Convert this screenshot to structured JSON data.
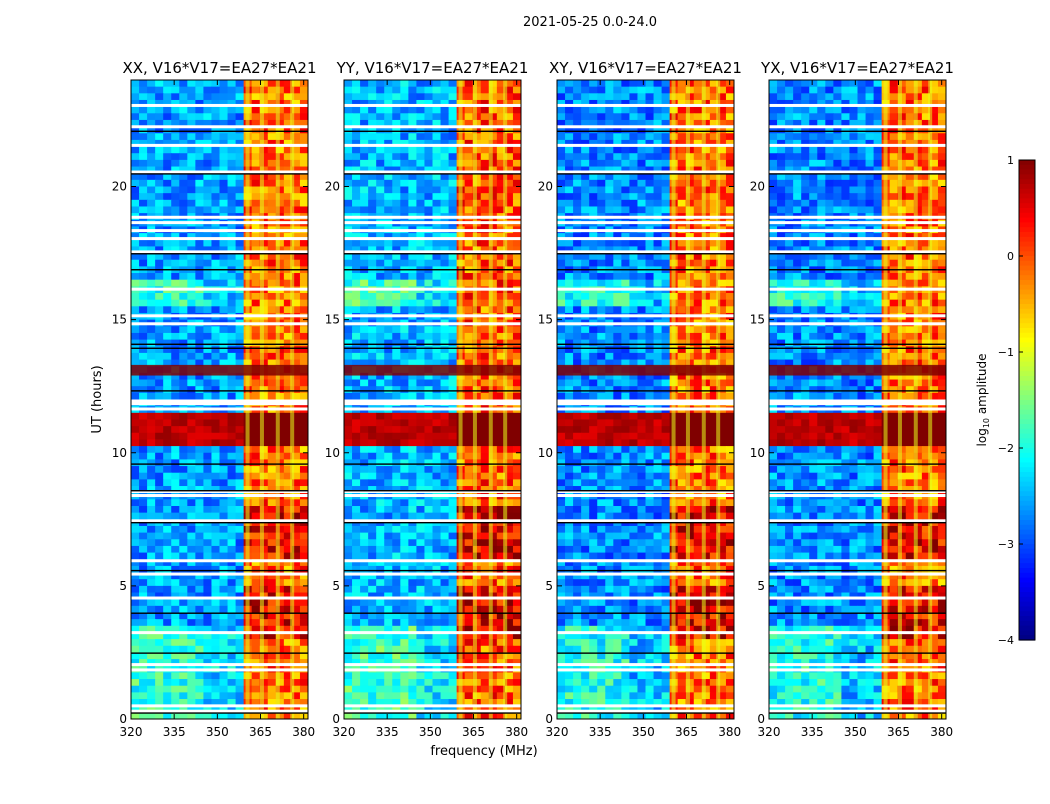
{
  "figure_title": "2021-05-25 0.0-24.0",
  "chart_data": [
    {
      "type": "heatmap",
      "title": "XX, V16*V17=EA27*EA21",
      "xlabel": "",
      "ylabel": "UT (hours)",
      "xlim": [
        320,
        381.5
      ],
      "ylim": [
        0,
        24
      ],
      "xticks": [
        "320",
        "335",
        "350",
        "365",
        "380"
      ],
      "yticks": [
        "0",
        "5",
        "10",
        "15",
        "20"
      ],
      "rfi_band_mhz": [
        359.5,
        380.5
      ],
      "rfi_level_log10": 0.2,
      "background_level_log10": -2.6,
      "strong_rfi_hours": [
        12.4,
        13.8
      ]
    },
    {
      "type": "heatmap",
      "title": "YY, V16*V17=EA27*EA21",
      "xlabel": "frequency (MHz)",
      "ylabel": "",
      "xlim": [
        320,
        381.5
      ],
      "ylim": [
        0,
        24
      ],
      "xticks": [
        "320",
        "335",
        "350",
        "365",
        "380"
      ],
      "yticks": [
        "0",
        "5",
        "10",
        "15",
        "20"
      ],
      "rfi_band_mhz": [
        359.5,
        380.5
      ],
      "rfi_level_log10": 0.3,
      "background_level_log10": -2.5,
      "strong_rfi_hours": [
        12.4,
        13.8
      ]
    },
    {
      "type": "heatmap",
      "title": "XY, V16*V17=EA27*EA21",
      "xlabel": "",
      "ylabel": "",
      "xlim": [
        320,
        381.5
      ],
      "ylim": [
        0,
        24
      ],
      "xticks": [
        "320",
        "335",
        "350",
        "365",
        "380"
      ],
      "yticks": [
        "0",
        "5",
        "10",
        "15",
        "20"
      ],
      "rfi_band_mhz": [
        359.5,
        380.5
      ],
      "rfi_level_log10": 0.2,
      "background_level_log10": -2.7,
      "strong_rfi_hours": [
        12.4,
        13.8
      ]
    },
    {
      "type": "heatmap",
      "title": "YX, V16*V17=EA27*EA21",
      "xlabel": "",
      "ylabel": "",
      "xlim": [
        320,
        381.5
      ],
      "ylim": [
        0,
        24
      ],
      "xticks": [
        "320",
        "335",
        "350",
        "365",
        "380"
      ],
      "yticks": [
        "0",
        "5",
        "10",
        "15",
        "20"
      ],
      "rfi_band_mhz": [
        359.5,
        380.5
      ],
      "rfi_level_log10": 0.2,
      "background_level_log10": -2.7,
      "strong_rfi_hours": [
        12.4,
        13.8
      ]
    }
  ],
  "colorbar": {
    "label": "log10 amplitude",
    "label_main": "log",
    "label_sub": "10",
    "label_rest": " amplitude",
    "range": [
      -4,
      1
    ],
    "ticks": [
      "1",
      "0",
      "−1",
      "−2",
      "−3",
      "−4"
    ],
    "colormap": "jet"
  }
}
